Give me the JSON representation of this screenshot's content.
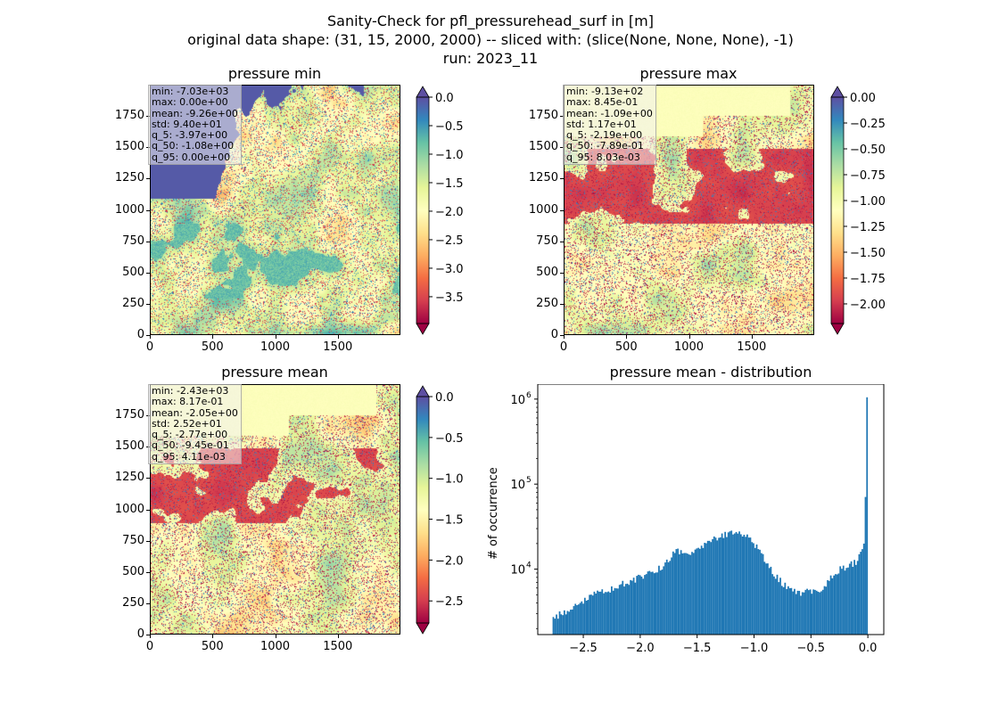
{
  "figure": {
    "title_line1": "Sanity-Check for pfl_pressurehead_surf in [m]",
    "title_line2": "original data shape: (31, 15, 2000, 2000) -- sliced with: (slice(None, None, None), -1)",
    "title_line3": "run: 2023_11"
  },
  "panels": {
    "min": {
      "title": "pressure min",
      "x_ticks": [
        "0",
        "500",
        "1000",
        "1500"
      ],
      "y_ticks": [
        "0",
        "250",
        "500",
        "750",
        "1000",
        "1250",
        "1500",
        "1750"
      ],
      "stats": [
        "min: -7.03e+03",
        "max: 0.00e+00",
        "mean: -9.26e+00",
        "std: 9.40e+01",
        "q_5: -3.97e+00",
        "q_50: -1.08e+00",
        "q_95: 0.00e+00"
      ],
      "colorbar": {
        "vmin": -3.97,
        "vmax": 0.0,
        "ticks": [
          "0.0",
          "−0.5",
          "−1.0",
          "−1.5",
          "−2.0",
          "−2.5",
          "−3.0",
          "−3.5"
        ],
        "tick_values": [
          0,
          -0.5,
          -1,
          -1.5,
          -2,
          -2.5,
          -3,
          -3.5
        ],
        "extend": "both",
        "cmap": "Spectral"
      }
    },
    "max": {
      "title": "pressure max",
      "x_ticks": [
        "0",
        "500",
        "1000",
        "1500"
      ],
      "y_ticks": [
        "0",
        "250",
        "500",
        "750",
        "1000",
        "1250",
        "1500",
        "1750"
      ],
      "stats": [
        "min: -9.13e+02",
        "max: 8.45e-01",
        "mean: -1.09e+00",
        "std: 1.17e+01",
        "q_5: -2.19e+00",
        "q_50: -7.89e-01",
        "q_95: 8.03e-03"
      ],
      "colorbar": {
        "vmin": -2.19,
        "vmax": 0.0,
        "ticks": [
          "0.00",
          "−0.25",
          "−0.50",
          "−0.75",
          "−1.00",
          "−1.25",
          "−1.50",
          "−1.75",
          "−2.00"
        ],
        "tick_values": [
          0,
          -0.25,
          -0.5,
          -0.75,
          -1,
          -1.25,
          -1.5,
          -1.75,
          -2
        ],
        "extend": "both",
        "cmap": "Spectral"
      }
    },
    "mean": {
      "title": "pressure mean",
      "x_ticks": [
        "0",
        "500",
        "1000",
        "1500"
      ],
      "y_ticks": [
        "0",
        "250",
        "500",
        "750",
        "1000",
        "1250",
        "1500",
        "1750"
      ],
      "stats": [
        "min: -2.43e+03",
        "max: 8.17e-01",
        "mean: -2.05e+00",
        "std: 2.52e+01",
        "q_5: -2.77e+00",
        "q_50: -9.45e-01",
        "q_95: 4.11e-03"
      ],
      "colorbar": {
        "vmin": -2.77,
        "vmax": 0.0,
        "ticks": [
          "0.0",
          "−0.5",
          "−1.0",
          "−1.5",
          "−2.0",
          "−2.5"
        ],
        "tick_values": [
          0,
          -0.5,
          -1,
          -1.5,
          -2,
          -2.5
        ],
        "extend": "both",
        "cmap": "Spectral"
      }
    },
    "hist": {
      "title": "pressure mean - distribution",
      "ylabel": "# of occurrence",
      "x_ticks": [
        "−2.5",
        "−2.0",
        "−1.5",
        "−1.0",
        "−0.5",
        "0.0"
      ],
      "y_ticks": [
        "10",
        "10",
        "10"
      ],
      "y_tick_exps": [
        "6",
        "5",
        "4"
      ],
      "bar_color": "#1f77b4"
    }
  },
  "chart_data": [
    {
      "type": "heatmap",
      "title": "pressure min",
      "x_range": [
        0,
        2000
      ],
      "y_range": [
        0,
        2000
      ],
      "value_range": [
        -3.97,
        0.0
      ],
      "colormap": "Spectral"
    },
    {
      "type": "heatmap",
      "title": "pressure max",
      "x_range": [
        0,
        2000
      ],
      "y_range": [
        0,
        2000
      ],
      "value_range": [
        -2.19,
        0.0
      ],
      "colormap": "Spectral"
    },
    {
      "type": "heatmap",
      "title": "pressure mean",
      "x_range": [
        0,
        2000
      ],
      "y_range": [
        0,
        2000
      ],
      "value_range": [
        -2.77,
        0.0
      ],
      "colormap": "Spectral"
    },
    {
      "type": "bar",
      "title": "pressure mean - distribution",
      "ylabel": "# of occurrence",
      "yscale": "log",
      "xlim": [
        -2.9,
        0.14
      ],
      "ylim": [
        1700,
        1500000
      ],
      "x": [
        -2.77,
        -2.6,
        -2.4,
        -2.2,
        -2.0,
        -1.8,
        -1.7,
        -1.6,
        -1.5,
        -1.4,
        -1.3,
        -1.2,
        -1.1,
        -1.0,
        -0.9,
        -0.8,
        -0.7,
        -0.6,
        -0.5,
        -0.4,
        -0.3,
        -0.2,
        -0.1,
        -0.03,
        0.0
      ],
      "values": [
        2600,
        3500,
        5000,
        6300,
        8000,
        10500,
        16500,
        15500,
        17500,
        20500,
        24000,
        27500,
        26500,
        20500,
        13000,
        8000,
        5900,
        5300,
        5400,
        5600,
        9000,
        10500,
        12000,
        20000,
        1050000
      ]
    }
  ]
}
